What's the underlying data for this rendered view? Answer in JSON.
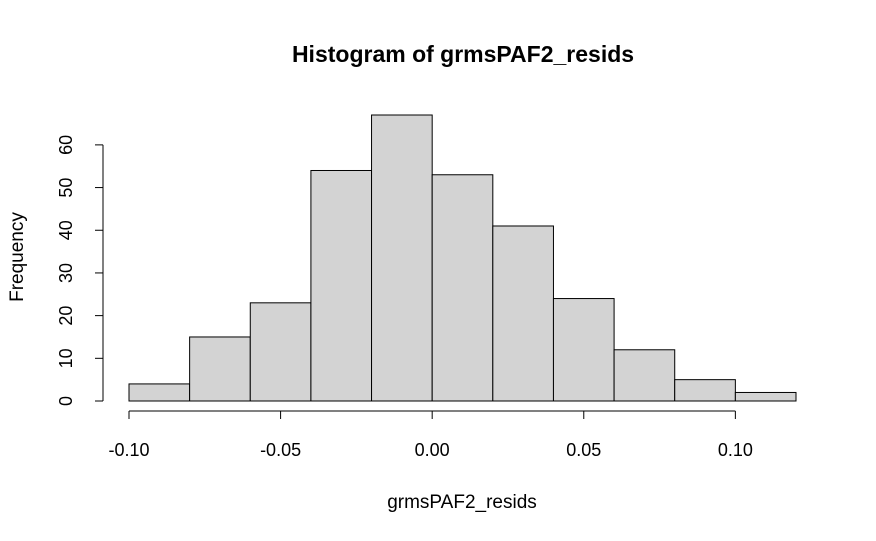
{
  "chart_data": {
    "type": "bar",
    "title": "Histogram of grmsPAF2_resids",
    "xlabel": "grmsPAF2_resids",
    "ylabel": "Frequency",
    "bin_edges": [
      -0.1,
      -0.08,
      -0.06,
      -0.04,
      -0.02,
      0.0,
      0.02,
      0.04,
      0.06,
      0.08,
      0.1,
      0.12
    ],
    "values": [
      4,
      15,
      23,
      54,
      67,
      53,
      41,
      24,
      12,
      5,
      2
    ],
    "xlim": [
      -0.1,
      0.12
    ],
    "ylim": [
      0,
      67
    ],
    "x_ticks": [
      -0.1,
      -0.05,
      0.0,
      0.05,
      0.1
    ],
    "x_tick_labels": [
      "-0.10",
      "-0.05",
      "0.00",
      "0.05",
      "0.10"
    ],
    "y_ticks": [
      0,
      10,
      20,
      30,
      40,
      50,
      60
    ],
    "y_tick_labels": [
      "0",
      "10",
      "20",
      "30",
      "40",
      "50",
      "60"
    ],
    "bar_fill": "#d3d3d3",
    "bar_stroke": "#000000",
    "grid": false,
    "legend": "none"
  }
}
